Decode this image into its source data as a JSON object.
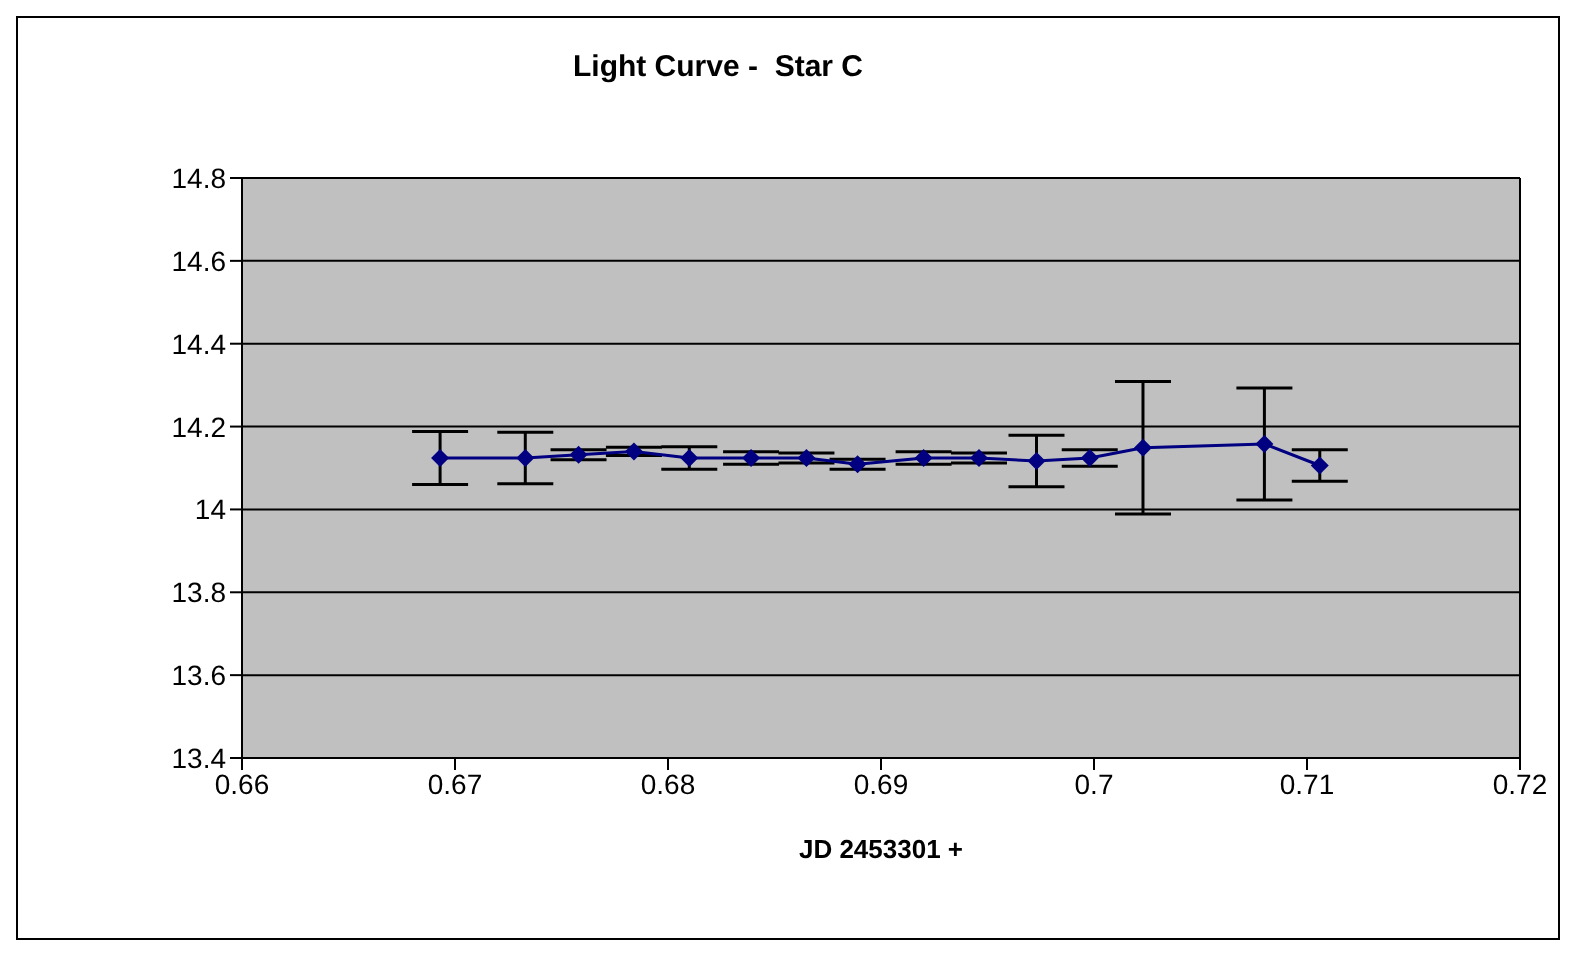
{
  "chart_data": {
    "type": "line",
    "title": "Light Curve -  Star C",
    "xlabel": "JD 2453301 +",
    "x": [
      0.6693,
      0.6733,
      0.6758,
      0.6784,
      0.681,
      0.6839,
      0.6865,
      0.6889,
      0.692,
      0.6946,
      0.6973,
      0.6998,
      0.7023,
      0.708,
      0.7106
    ],
    "series": [
      {
        "color": "#000080",
        "values": [
          14.124,
          14.124,
          14.132,
          14.14,
          14.124,
          14.124,
          14.124,
          14.109,
          14.124,
          14.124,
          14.117,
          14.124,
          14.149,
          14.158,
          14.106
        ],
        "errors": [
          0.064,
          0.062,
          0.012,
          0.01,
          0.027,
          0.015,
          0.012,
          0.012,
          0.015,
          0.012,
          0.062,
          0.02,
          0.16,
          0.135,
          0.038
        ]
      }
    ],
    "xlim": [
      0.66,
      0.72
    ],
    "xticks": [
      0.66,
      0.67,
      0.68,
      0.69,
      0.7,
      0.71,
      0.72
    ],
    "ylim": [
      13.4,
      14.8
    ],
    "yticks": [
      13.4,
      13.6,
      13.8,
      14,
      14.2,
      14.4,
      14.6,
      14.8
    ],
    "grid": "y",
    "marker": "diamond",
    "line_style": "solid"
  }
}
